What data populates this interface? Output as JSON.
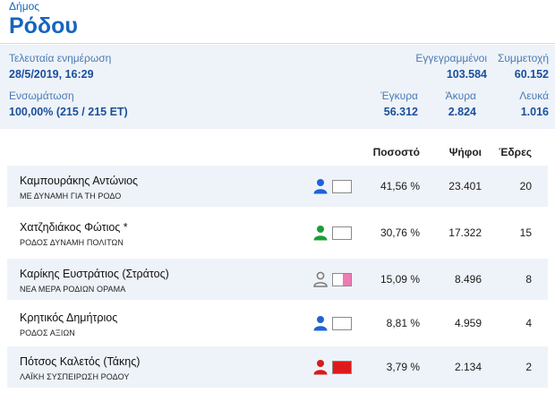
{
  "header": {
    "subtitle": "Δήμος",
    "title": "Ρόδου"
  },
  "stats": {
    "last_update_label": "Τελευταία ενημέρωση",
    "last_update_value": "28/5/2019, 16:29",
    "registered_label": "Εγγεγραμμένοι",
    "registered_value": "103.584",
    "turnout_label": "Συμμετοχή",
    "turnout_value": "60.152",
    "integration_label": "Ενσωμάτωση",
    "integration_value": "100,00% (215 / 215 ΕΤ)",
    "valid_label": "Έγκυρα",
    "valid_value": "56.312",
    "invalid_label": "Άκυρα",
    "invalid_value": "2.824",
    "blank_label": "Λευκά",
    "blank_value": "1.016"
  },
  "table": {
    "columns": {
      "percent": "Ποσοστό",
      "votes": "Ψήφοι",
      "seats": "Έδρες"
    },
    "rows": [
      {
        "name": "Καμπουράκης Αντώνιος",
        "party": "ΜΕ ΔΥΝΑΜΗ ΓΙΑ ΤΗ ΡΟΔΟ",
        "percent": "41,56 %",
        "votes": "23.401",
        "seats": "20",
        "icon": "person-icon",
        "icon_color": "#1e63d6",
        "icon_outline": false,
        "swatch_color": "#ffffff",
        "swatch_fill": 0
      },
      {
        "name": "Χατζηδιάκος Φώτιος *",
        "party": "ΡΟΔΟΣ ΔΥΝΑΜΗ ΠΟΛΙΤΩΝ",
        "percent": "30,76 %",
        "votes": "17.322",
        "seats": "15",
        "icon": "person-icon",
        "icon_color": "#1b9e3a",
        "icon_outline": false,
        "swatch_color": "#ffffff",
        "swatch_fill": 0
      },
      {
        "name": "Καρίκης Ευστράτιος (Στράτος)",
        "party": "ΝΕΑ ΜΕΡΑ ΡΟΔΙΩΝ ΟΡΑΜΑ",
        "percent": "15,09 %",
        "votes": "8.496",
        "seats": "8",
        "icon": "person-outline-icon",
        "icon_color": "#7a7a7a",
        "icon_outline": true,
        "swatch_color": "#f07ab4",
        "swatch_fill": 0.45
      },
      {
        "name": "Κρητικός Δημήτριος",
        "party": "ΡΟΔΟΣ ΑΞΙΩΝ",
        "percent": "8,81 %",
        "votes": "4.959",
        "seats": "4",
        "icon": "person-icon",
        "icon_color": "#1e63d6",
        "icon_outline": false,
        "swatch_color": "#ffffff",
        "swatch_fill": 0
      },
      {
        "name": "Πότσος Καλετός (Τάκης)",
        "party": "ΛΑΪΚΗ ΣΥΣΠΕΙΡΩΣΗ ΡΟΔΟΥ",
        "percent": "3,79 %",
        "votes": "2.134",
        "seats": "2",
        "icon": "person-icon",
        "icon_color": "#d81b1b",
        "icon_outline": false,
        "swatch_color": "#e01a1a",
        "swatch_fill": 1
      }
    ]
  }
}
